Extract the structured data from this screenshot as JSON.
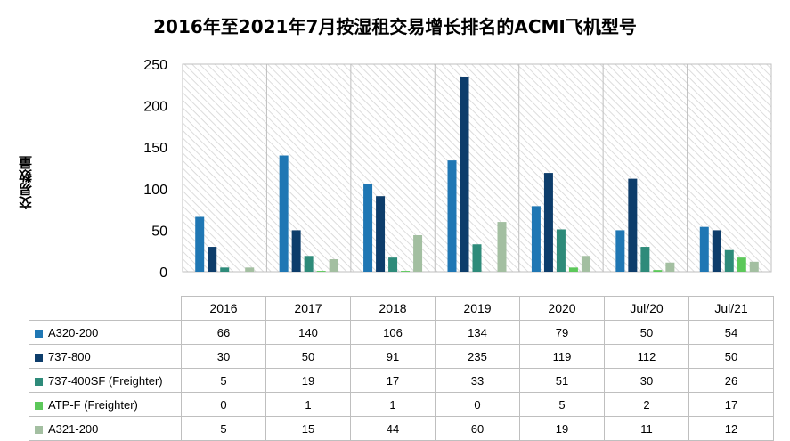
{
  "chart_data": {
    "type": "bar",
    "title": "2016年至2021年7月按湿租交易增长排名的ACMI飞机型号",
    "ylabel": "交易数量",
    "xlabel": "",
    "ylim": [
      0,
      250
    ],
    "yticks": [
      0,
      50,
      100,
      150,
      200,
      250
    ],
    "categories": [
      "2016",
      "2017",
      "2018",
      "2019",
      "2020",
      "Jul/20",
      "Jul/21"
    ],
    "grid": "hatched plot background with vertical category separators",
    "legend": "data table below chart",
    "series": [
      {
        "name": "A320-200",
        "color": "#1f77b4",
        "values": [
          66,
          140,
          106,
          134,
          79,
          50,
          54
        ]
      },
      {
        "name": "737-800",
        "color": "#0d3d6b",
        "values": [
          30,
          50,
          91,
          235,
          119,
          112,
          50
        ]
      },
      {
        "name": "737-400SF (Freighter)",
        "color": "#2e8b7a",
        "values": [
          5,
          19,
          17,
          33,
          51,
          30,
          26
        ]
      },
      {
        "name": "ATP-F (Freighter)",
        "color": "#5cc85a",
        "values": [
          0,
          1,
          1,
          0,
          5,
          2,
          17
        ]
      },
      {
        "name": "A321-200",
        "color": "#a3bfa1",
        "values": [
          5,
          15,
          44,
          60,
          19,
          11,
          12
        ]
      }
    ]
  }
}
